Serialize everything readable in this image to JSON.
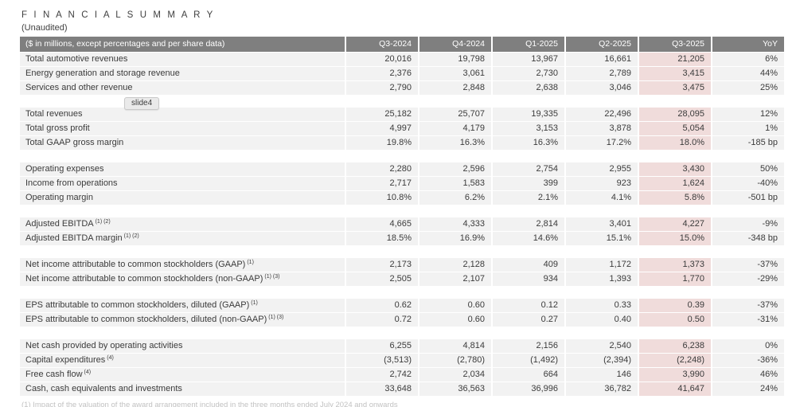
{
  "title": "F I N A N C I A L   S U M M A R Y",
  "subtitle": "(Unaudited)",
  "overlay_chip": "slide4",
  "colors": {
    "header_bg": "#7f7f7f",
    "header_text": "#ffffff",
    "row_bg": "#f2f2f2",
    "highlight_bg": "#f0dcdb",
    "body_text": "#3b3b3b"
  },
  "table": {
    "header_label": "($ in millions, except percentages and per share data)",
    "columns": [
      "Q3-2024",
      "Q4-2024",
      "Q1-2025",
      "Q2-2025",
      "Q3-2025",
      "YoY"
    ],
    "highlight_column": "Q3-2025",
    "highlight_column_index": 4,
    "groups": [
      {
        "rows": [
          {
            "label": "Total automotive revenues",
            "sup": "",
            "values": [
              "20,016",
              "19,798",
              "13,967",
              "16,661",
              "21,205",
              "6%"
            ]
          },
          {
            "label": "Energy generation and storage revenue",
            "sup": "",
            "values": [
              "2,376",
              "3,061",
              "2,730",
              "2,789",
              "3,415",
              "44%"
            ]
          },
          {
            "label": "Services and other revenue",
            "sup": "",
            "values": [
              "2,790",
              "2,848",
              "2,638",
              "3,046",
              "3,475",
              "25%"
            ]
          }
        ]
      },
      {
        "rows": [
          {
            "label": "Total revenues",
            "sup": "",
            "values": [
              "25,182",
              "25,707",
              "19,335",
              "22,496",
              "28,095",
              "12%"
            ]
          },
          {
            "label": "Total gross profit",
            "sup": "",
            "values": [
              "4,997",
              "4,179",
              "3,153",
              "3,878",
              "5,054",
              "1%"
            ]
          },
          {
            "label": "Total GAAP gross margin",
            "sup": "",
            "values": [
              "19.8%",
              "16.3%",
              "16.3%",
              "17.2%",
              "18.0%",
              "-185 bp"
            ]
          }
        ]
      },
      {
        "rows": [
          {
            "label": "Operating expenses",
            "sup": "",
            "values": [
              "2,280",
              "2,596",
              "2,754",
              "2,955",
              "3,430",
              "50%"
            ]
          },
          {
            "label": "Income from operations",
            "sup": "",
            "values": [
              "2,717",
              "1,583",
              "399",
              "923",
              "1,624",
              "-40%"
            ]
          },
          {
            "label": "Operating margin",
            "sup": "",
            "values": [
              "10.8%",
              "6.2%",
              "2.1%",
              "4.1%",
              "5.8%",
              "-501 bp"
            ]
          }
        ]
      },
      {
        "rows": [
          {
            "label": "Adjusted EBITDA",
            "sup": "(1) (2)",
            "values": [
              "4,665",
              "4,333",
              "2,814",
              "3,401",
              "4,227",
              "-9%"
            ]
          },
          {
            "label": "Adjusted EBITDA margin",
            "sup": "(1) (2)",
            "values": [
              "18.5%",
              "16.9%",
              "14.6%",
              "15.1%",
              "15.0%",
              "-348 bp"
            ]
          }
        ]
      },
      {
        "rows": [
          {
            "label": "Net income attributable to common stockholders (GAAP)",
            "sup": "(1)",
            "values": [
              "2,173",
              "2,128",
              "409",
              "1,172",
              "1,373",
              "-37%"
            ]
          },
          {
            "label": "Net income attributable to common stockholders (non-GAAP)",
            "sup": "(1) (3)",
            "values": [
              "2,505",
              "2,107",
              "934",
              "1,393",
              "1,770",
              "-29%"
            ]
          }
        ]
      },
      {
        "rows": [
          {
            "label": "EPS attributable to common stockholders, diluted (GAAP)",
            "sup": "(1)",
            "values": [
              "0.62",
              "0.60",
              "0.12",
              "0.33",
              "0.39",
              "-37%"
            ]
          },
          {
            "label": "EPS attributable to common stockholders, diluted (non-GAAP)",
            "sup": "(1) (3)",
            "values": [
              "0.72",
              "0.60",
              "0.27",
              "0.40",
              "0.50",
              "-31%"
            ]
          }
        ]
      },
      {
        "rows": [
          {
            "label": "Net cash provided by operating activities",
            "sup": "",
            "values": [
              "6,255",
              "4,814",
              "2,156",
              "2,540",
              "6,238",
              "0%"
            ]
          },
          {
            "label": "Capital expenditures",
            "sup": "(4)",
            "values": [
              "(3,513)",
              "(2,780)",
              "(1,492)",
              "(2,394)",
              "(2,248)",
              "-36%"
            ]
          },
          {
            "label": "Free cash flow",
            "sup": "(4)",
            "values": [
              "2,742",
              "2,034",
              "664",
              "146",
              "3,990",
              "46%"
            ]
          },
          {
            "label": "Cash, cash equivalents and investments",
            "sup": "",
            "values": [
              "33,648",
              "36,563",
              "36,996",
              "36,782",
              "41,647",
              "24%"
            ]
          }
        ]
      }
    ]
  },
  "footnote_clipped": "(1) Impact of the valuation of the award arrangement included in the three months ended July 2024 and onwards"
}
